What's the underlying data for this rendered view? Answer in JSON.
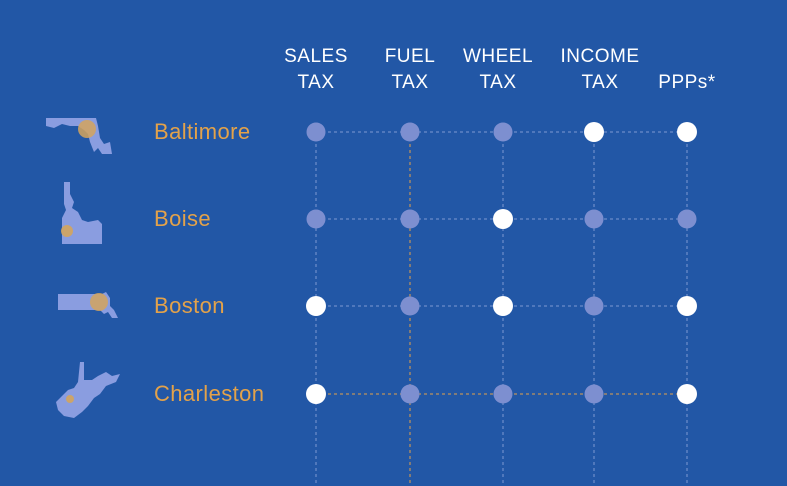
{
  "colors": {
    "background": "#2257a6",
    "active_dot": "#ffffff",
    "inactive_dot": "#7d8fd0",
    "grid_line": "#7f9ad2",
    "highlight_line": "#e3a24a",
    "city_label": "#e3a24a",
    "state_shape": "#8a9de0",
    "city_marker": "#d3a55d"
  },
  "chart_data": {
    "type": "table",
    "columns": [
      {
        "key": "sales",
        "line1": "SALES",
        "line2": "TAX"
      },
      {
        "key": "fuel",
        "line1": "FUEL",
        "line2": "TAX"
      },
      {
        "key": "wheel",
        "line1": "WHEEL",
        "line2": "TAX"
      },
      {
        "key": "income",
        "line1": "INCOME",
        "line2": "TAX"
      },
      {
        "key": "ppps",
        "line1": "PPPs*",
        "line2": ""
      }
    ],
    "rows": [
      {
        "city": "Baltimore",
        "state_icon": "maryland-icon",
        "values": [
          0,
          0,
          0,
          1,
          1
        ]
      },
      {
        "city": "Boise",
        "state_icon": "idaho-icon",
        "values": [
          0,
          0,
          1,
          0,
          0
        ]
      },
      {
        "city": "Boston",
        "state_icon": "massachusetts-icon",
        "values": [
          1,
          0,
          1,
          0,
          1
        ]
      },
      {
        "city": "Charleston",
        "state_icon": "west-virginia-icon",
        "values": [
          1,
          0,
          0,
          0,
          1
        ]
      }
    ],
    "highlight": {
      "column": "fuel",
      "row": "Charleston"
    }
  }
}
